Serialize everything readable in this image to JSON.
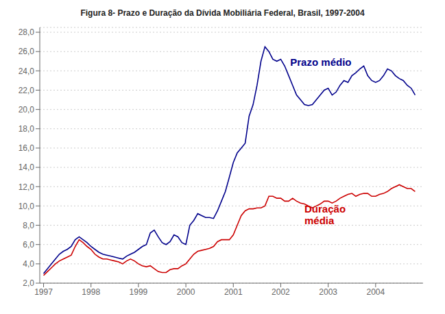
{
  "chart_data": {
    "type": "line",
    "title": "Figura 8- Prazo e Duração da Dívida Mobiliária Federal, Brasil, 1997-2004",
    "x": [
      1997.0,
      1997.083,
      1997.167,
      1997.25,
      1997.333,
      1997.417,
      1997.5,
      1997.583,
      1997.667,
      1997.75,
      1997.833,
      1997.917,
      1998.0,
      1998.083,
      1998.167,
      1998.25,
      1998.333,
      1998.417,
      1998.5,
      1998.583,
      1998.667,
      1998.75,
      1998.833,
      1998.917,
      1999.0,
      1999.083,
      1999.167,
      1999.25,
      1999.333,
      1999.417,
      1999.5,
      1999.583,
      1999.667,
      1999.75,
      1999.833,
      1999.917,
      2000.0,
      2000.083,
      2000.167,
      2000.25,
      2000.333,
      2000.417,
      2000.5,
      2000.583,
      2000.667,
      2000.75,
      2000.833,
      2000.917,
      2001.0,
      2001.083,
      2001.167,
      2001.25,
      2001.333,
      2001.417,
      2001.5,
      2001.583,
      2001.667,
      2001.75,
      2001.833,
      2001.917,
      2002.0,
      2002.083,
      2002.167,
      2002.25,
      2002.333,
      2002.417,
      2002.5,
      2002.583,
      2002.667,
      2002.75,
      2002.833,
      2002.917,
      2003.0,
      2003.083,
      2003.167,
      2003.25,
      2003.333,
      2003.417,
      2003.5,
      2003.583,
      2003.667,
      2003.75,
      2003.833,
      2003.917,
      2004.0,
      2004.083,
      2004.167,
      2004.25,
      2004.333,
      2004.417,
      2004.5,
      2004.583,
      2004.667,
      2004.75,
      2004.833
    ],
    "series": [
      {
        "color": "#00008B",
        "values": [
          3.0,
          3.5,
          4.0,
          4.5,
          5.0,
          5.3,
          5.5,
          5.8,
          6.5,
          6.8,
          6.5,
          6.2,
          5.8,
          5.5,
          5.2,
          5.0,
          4.9,
          4.8,
          4.7,
          4.6,
          4.5,
          4.8,
          5.0,
          5.2,
          5.5,
          5.8,
          6.0,
          7.2,
          7.5,
          6.8,
          6.2,
          6.0,
          6.3,
          7.0,
          6.8,
          6.2,
          6.0,
          8.0,
          8.5,
          9.2,
          9.0,
          8.8,
          8.8,
          8.7,
          9.5,
          10.5,
          11.5,
          13.0,
          14.5,
          15.5,
          16.0,
          16.5,
          19.3,
          20.5,
          22.5,
          25.0,
          26.5,
          26.0,
          25.2,
          25.0,
          25.2,
          24.5,
          23.5,
          22.5,
          21.5,
          21.0,
          20.5,
          20.4,
          20.5,
          21.0,
          21.5,
          22.0,
          22.2,
          21.5,
          21.8,
          22.5,
          23.0,
          22.8,
          23.5,
          23.8,
          24.2,
          24.5,
          23.5,
          23.0,
          22.8,
          23.0,
          23.5,
          24.2,
          24.0,
          23.5,
          23.2,
          23.0,
          22.5,
          22.2,
          21.5
        ]
      },
      {
        "color": "#CC0000",
        "values": [
          2.8,
          3.2,
          3.6,
          4.0,
          4.3,
          4.5,
          4.7,
          4.9,
          5.8,
          6.5,
          6.2,
          5.8,
          5.5,
          5.0,
          4.7,
          4.5,
          4.5,
          4.4,
          4.3,
          4.2,
          4.0,
          4.3,
          4.5,
          4.3,
          4.0,
          3.8,
          3.7,
          3.8,
          3.5,
          3.2,
          3.1,
          3.1,
          3.4,
          3.5,
          3.5,
          3.8,
          4.0,
          4.5,
          5.0,
          5.3,
          5.4,
          5.5,
          5.6,
          5.8,
          6.3,
          6.5,
          6.5,
          6.5,
          7.0,
          8.0,
          9.0,
          9.5,
          9.7,
          9.7,
          9.8,
          9.8,
          10.0,
          11.0,
          11.0,
          10.8,
          10.8,
          10.5,
          10.5,
          10.8,
          10.5,
          10.3,
          10.2,
          10.0,
          9.8,
          10.0,
          10.2,
          10.5,
          10.5,
          10.3,
          10.5,
          10.8,
          11.0,
          11.2,
          11.3,
          11.0,
          11.2,
          11.3,
          11.3,
          11.0,
          11.0,
          11.2,
          11.3,
          11.5,
          11.8,
          12.0,
          12.2,
          12.0,
          11.8,
          11.8,
          11.5
        ]
      }
    ],
    "annotations": [
      {
        "text": "Prazo médio",
        "x": 2002.2,
        "y": 24.8,
        "color": "#00008B"
      },
      {
        "text": "Duração\nmédia",
        "x": 2002.5,
        "y": 9.0,
        "color": "#CC0000"
      }
    ],
    "xlim": [
      1996.92,
      2005.0
    ],
    "xticks": [
      1997,
      1998,
      1999,
      2000,
      2001,
      2002,
      2003,
      2004
    ],
    "ylim": [
      2.0,
      28.5
    ],
    "yticks": [
      {
        "value": 2,
        "label": "2,0"
      },
      {
        "value": 4,
        "label": "4,0"
      },
      {
        "value": 6,
        "label": "6,0"
      },
      {
        "value": 8,
        "label": "8,0"
      },
      {
        "value": 10,
        "label": "10,0"
      },
      {
        "value": 12,
        "label": "12,0"
      },
      {
        "value": 14,
        "label": "14,0"
      },
      {
        "value": 16,
        "label": "16,0"
      },
      {
        "value": 18,
        "label": "18,0"
      },
      {
        "value": 20,
        "label": "20,0"
      },
      {
        "value": 22,
        "label": "22,0"
      },
      {
        "value": 24,
        "label": "24,0"
      },
      {
        "value": 26,
        "label": "26,0"
      },
      {
        "value": 28,
        "label": "28,0"
      }
    ],
    "grid": true
  }
}
